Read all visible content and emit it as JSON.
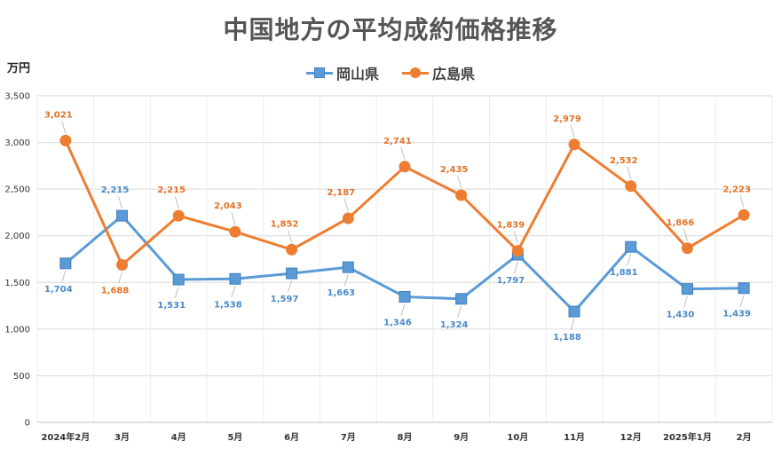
{
  "chart_data": {
    "type": "line",
    "title": "中国地方の平均成約価格推移",
    "ylabel": "万円",
    "xlabel": "",
    "ylim": [
      0,
      3500
    ],
    "yticks": [
      0,
      500,
      1000,
      1500,
      2000,
      2500,
      3000,
      3500
    ],
    "ytick_labels": [
      "0",
      "500",
      "1,000",
      "1,500",
      "2,000",
      "2,500",
      "3,000",
      "3,500"
    ],
    "grid": true,
    "legend_position": "top",
    "categories": [
      "2024年2月",
      "3月",
      "4月",
      "5月",
      "6月",
      "7月",
      "8月",
      "9月",
      "10月",
      "11月",
      "12月",
      "2025年1月",
      "2月"
    ],
    "series": [
      {
        "name": "岡山県",
        "color": "#5b9bd5",
        "marker": "square",
        "values": [
          1704,
          2215,
          1531,
          1538,
          1597,
          1663,
          1346,
          1324,
          1797,
          1188,
          1881,
          1430,
          1439
        ],
        "labels": [
          "1,704",
          "2,215",
          "1,531",
          "1,538",
          "1,597",
          "1,663",
          "1,346",
          "1,324",
          "1,797",
          "1,188",
          "1,881",
          "1,430",
          "1,439"
        ]
      },
      {
        "name": "広島県",
        "color": "#ed7d31",
        "marker": "circle",
        "values": [
          3021,
          1688,
          2215,
          2043,
          1852,
          2187,
          2741,
          2435,
          1839,
          2979,
          2532,
          1866,
          2223
        ],
        "labels": [
          "3,021",
          "1,688",
          "2,215",
          "2,043",
          "1,852",
          "2,187",
          "2,741",
          "2,435",
          "1,839",
          "2,979",
          "2,532",
          "1,866",
          "2,223"
        ]
      }
    ]
  }
}
